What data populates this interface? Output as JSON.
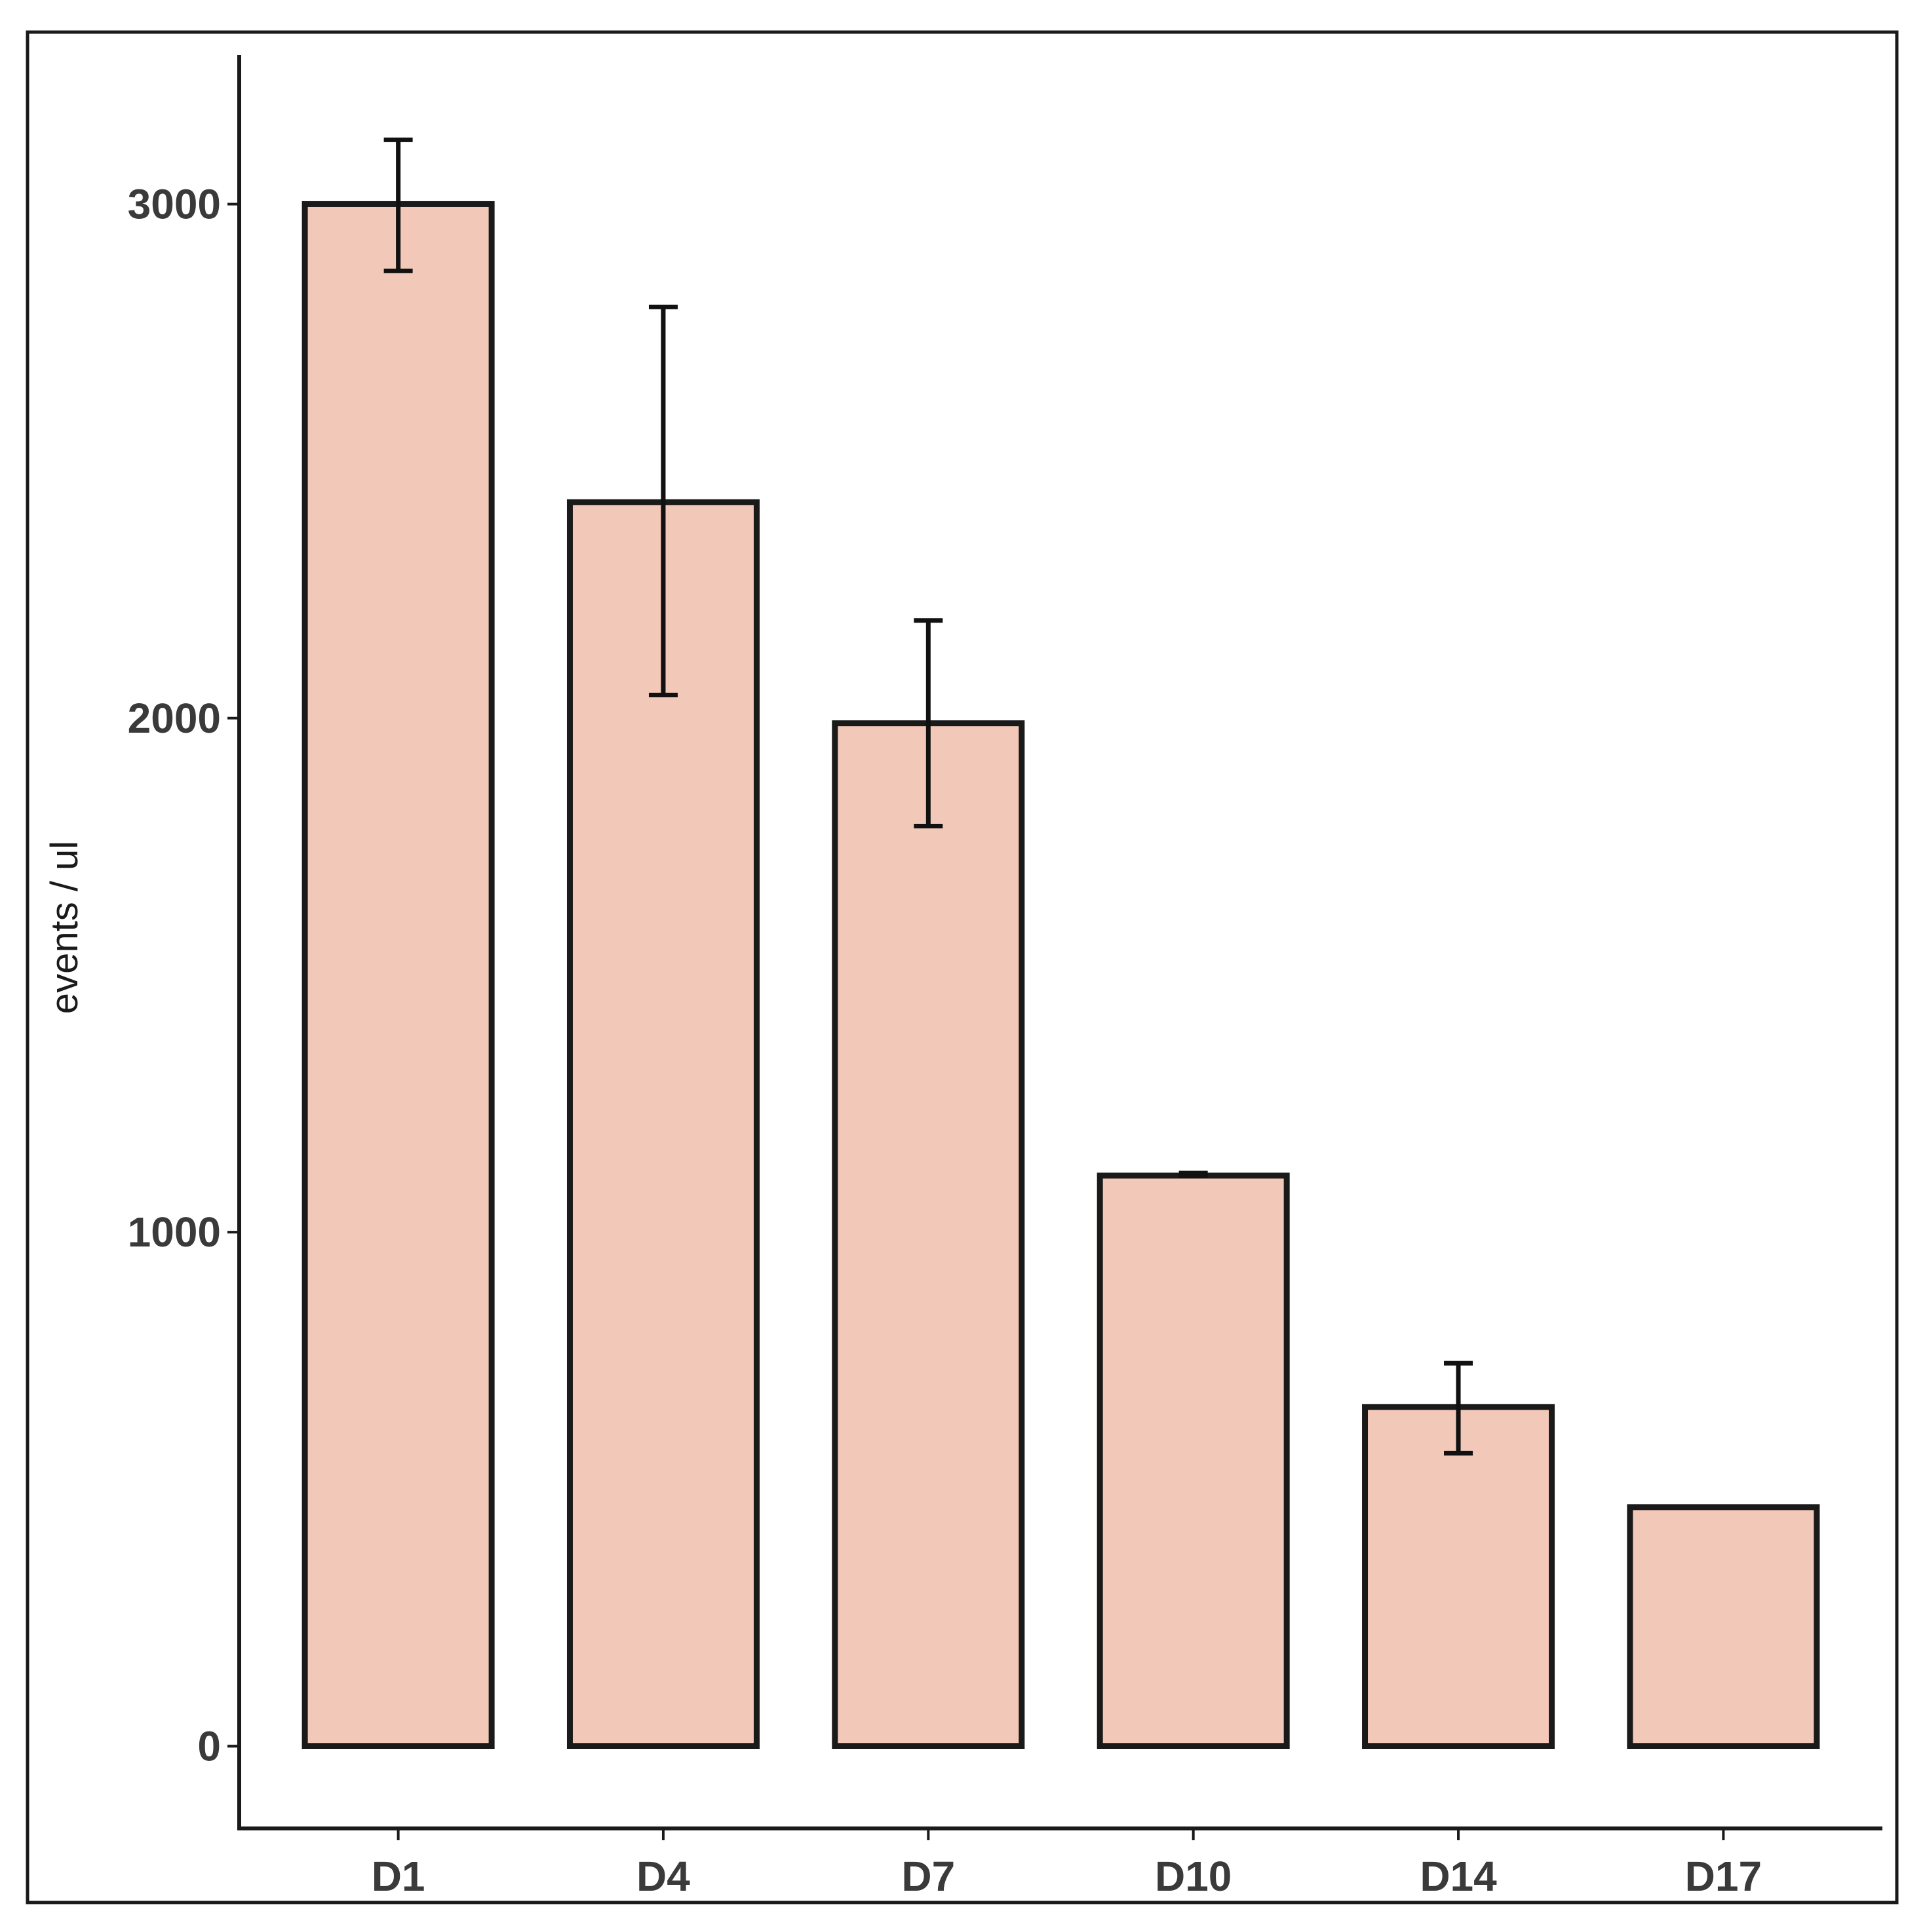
{
  "chart_data": {
    "type": "bar",
    "title": "",
    "xlabel": "",
    "ylabel": "events / ul",
    "categories": [
      "D1",
      "D4",
      "D7",
      "D10",
      "D14",
      "D17"
    ],
    "values": [
      3000,
      2420,
      1990,
      1110,
      660,
      465
    ],
    "error_low": [
      2870,
      2045,
      1790,
      1110,
      570,
      465
    ],
    "error_high": [
      3125,
      2800,
      2190,
      1115,
      745,
      465
    ],
    "yticks": [
      0,
      1000,
      2000,
      3000
    ],
    "ytick_labels": [
      "0",
      "1000",
      "2000",
      "3000"
    ],
    "ylim": [
      -160,
      3290
    ],
    "grid": false,
    "legend": "none",
    "colors": {
      "bar_fill": "#f2c8b8",
      "bar_edge": "#1a1a1a",
      "error_bar": "#111111"
    }
  }
}
